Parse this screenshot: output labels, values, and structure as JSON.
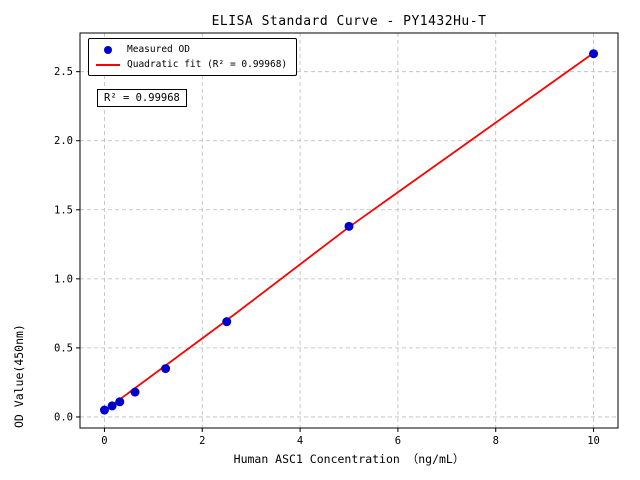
{
  "chart_data": {
    "type": "scatter",
    "title": "ELISA Standard Curve - PY1432Hu-T",
    "xlabel": "Human ASC1 Concentration （ng/mL）",
    "ylabel": "OD Value(450nm)",
    "xlim": [
      -0.5,
      10.5
    ],
    "ylim": [
      -0.08,
      2.78
    ],
    "grid": true,
    "legend_position": "upper-left",
    "xticks": {
      "values": [
        0,
        2,
        4,
        6,
        8,
        10
      ],
      "labels": [
        "0",
        "2",
        "4",
        "6",
        "8",
        "10"
      ]
    },
    "yticks": {
      "values": [
        0,
        0.5,
        1.0,
        1.5,
        2.0,
        2.5
      ],
      "labels": [
        "0.0",
        "0.5",
        "1.0",
        "1.5",
        "2.0",
        "2.5"
      ]
    },
    "colors": {
      "scatter": "#0000cd",
      "fit_line": "#ff0000",
      "grid": "#bbbbbb"
    },
    "legend": {
      "items": [
        {
          "label": "Measured OD",
          "marker": "dot",
          "color": "#0000cd"
        },
        {
          "label": "Quadratic fit (R² = 0.99968)",
          "marker": "line",
          "color": "#ff0000"
        }
      ]
    },
    "annotation": "R² = 0.99968",
    "series": [
      {
        "name": "Measured OD",
        "type": "scatter",
        "color": "#0000cd",
        "points": [
          [
            0,
            0.05
          ],
          [
            0.156,
            0.08
          ],
          [
            0.313,
            0.11
          ],
          [
            0.625,
            0.18
          ],
          [
            1.25,
            0.35
          ],
          [
            2.5,
            0.69
          ],
          [
            5,
            1.38
          ],
          [
            10,
            2.63
          ]
        ]
      },
      {
        "name": "Quadratic fit",
        "type": "line",
        "color": "#ff0000",
        "points": [
          [
            0,
            0.045
          ],
          [
            2.5,
            0.7
          ],
          [
            5,
            1.375
          ],
          [
            10,
            2.635
          ]
        ]
      }
    ]
  }
}
